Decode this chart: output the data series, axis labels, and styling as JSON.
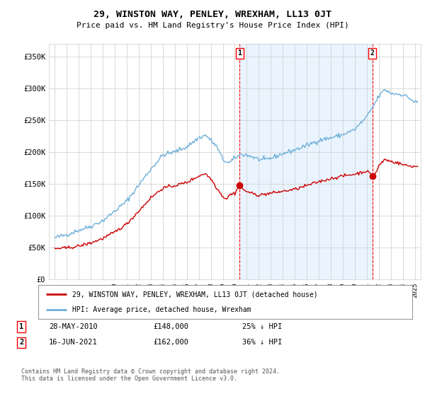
{
  "title": "29, WINSTON WAY, PENLEY, WREXHAM, LL13 0JT",
  "subtitle": "Price paid vs. HM Land Registry's House Price Index (HPI)",
  "ylabel_ticks": [
    "£0",
    "£50K",
    "£100K",
    "£150K",
    "£200K",
    "£250K",
    "£300K",
    "£350K"
  ],
  "ytick_vals": [
    0,
    50000,
    100000,
    150000,
    200000,
    250000,
    300000,
    350000
  ],
  "ylim": [
    0,
    370000
  ],
  "xlim_start": 1994.5,
  "xlim_end": 2025.5,
  "hpi_color": "#6eb0d8",
  "price_color": "#cc0000",
  "sale1_x": 2010.4,
  "sale1_y": 148000,
  "sale1_label": "1",
  "sale2_x": 2021.46,
  "sale2_y": 162000,
  "sale2_label": "2",
  "legend_entry1": "29, WINSTON WAY, PENLEY, WREXHAM, LL13 0JT (detached house)",
  "legend_entry2": "HPI: Average price, detached house, Wrexham",
  "annotation1_date": "28-MAY-2010",
  "annotation1_price": "£148,000",
  "annotation1_hpi": "25% ↓ HPI",
  "annotation2_date": "16-JUN-2021",
  "annotation2_price": "£162,000",
  "annotation2_hpi": "36% ↓ HPI",
  "footer": "Contains HM Land Registry data © Crown copyright and database right 2024.\nThis data is licensed under the Open Government Licence v3.0.",
  "background_color": "#ffffff",
  "plot_bg_color": "#ffffff",
  "fill_color": "#ddeeff",
  "grid_color": "#cccccc"
}
